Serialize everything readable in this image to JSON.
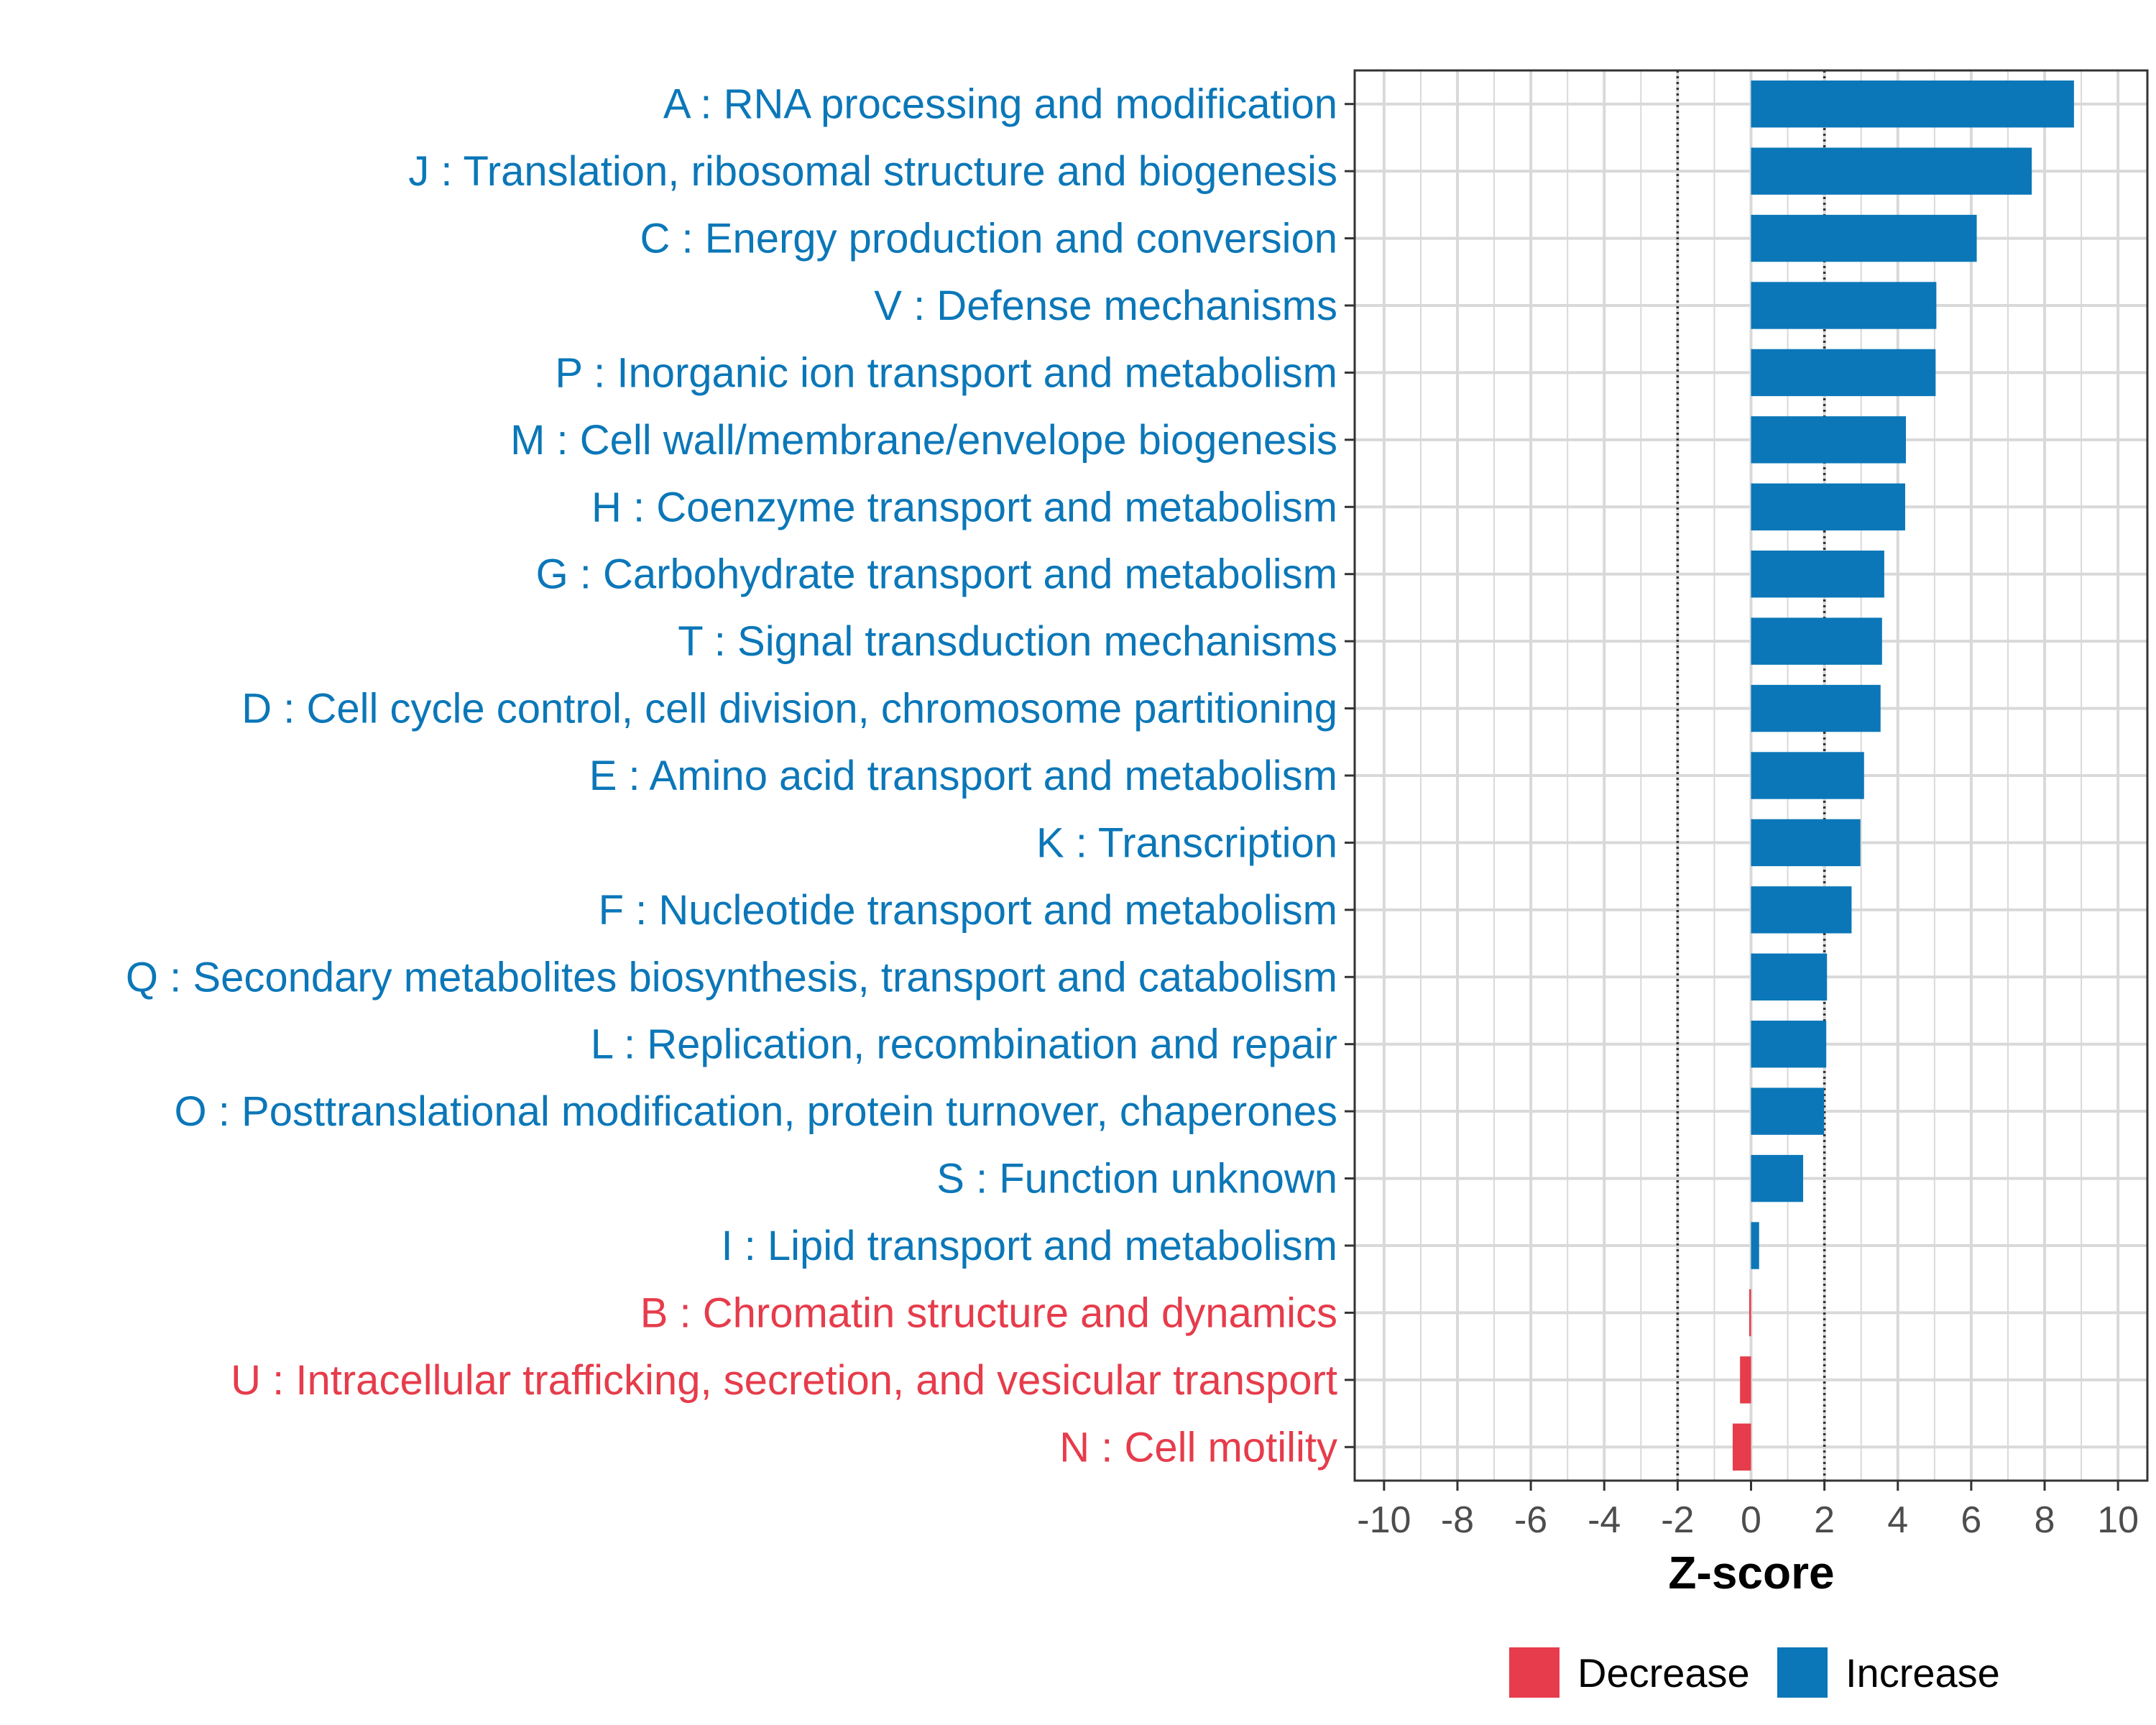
{
  "colors": {
    "increase": "#0B77B8",
    "decrease": "#E63C4B",
    "grid": "#d9d9d9",
    "frame": "#333333",
    "refline": "#333333"
  },
  "chart_data": {
    "type": "bar",
    "orientation": "horizontal",
    "title": "",
    "xlabel": "Z-score",
    "ylabel": "",
    "xlim": [
      -10.8,
      10.8
    ],
    "x_ticks": [
      -10,
      -8,
      -6,
      -4,
      -2,
      0,
      2,
      4,
      6,
      8,
      10
    ],
    "x_tick_labels": [
      "-10",
      "-8",
      "-6",
      "-4",
      "-2",
      "0",
      "2",
      "4",
      "6",
      "8",
      "10"
    ],
    "reference_lines": [
      -2,
      2
    ],
    "grid": true,
    "legend_position": "bottom",
    "legend": [
      {
        "label": "Decrease",
        "color_key": "decrease"
      },
      {
        "label": "Increase",
        "color_key": "increase"
      }
    ],
    "categories": [
      "A : RNA processing and modification",
      "J : Translation, ribosomal structure and biogenesis",
      "C : Energy production and conversion",
      "V : Defense mechanisms",
      "P : Inorganic ion transport and metabolism",
      "M : Cell wall/membrane/envelope biogenesis",
      "H : Coenzyme transport and metabolism",
      "G : Carbohydrate transport and metabolism",
      "T : Signal transduction mechanisms",
      "D : Cell cycle control, cell division, chromosome partitioning",
      "E : Amino acid transport and metabolism",
      "K : Transcription",
      "F : Nucleotide transport and metabolism",
      "Q : Secondary metabolites biosynthesis, transport and catabolism",
      "L : Replication, recombination and repair",
      "O : Posttranslational modification, protein turnover, chaperones",
      "S : Function unknown",
      "I : Lipid transport and metabolism",
      "B : Chromatin structure and dynamics",
      "U : Intracellular trafficking, secretion, and vesicular transport",
      "N : Cell motility"
    ],
    "values": [
      8.8,
      7.65,
      6.15,
      5.05,
      5.03,
      4.22,
      4.2,
      3.63,
      3.57,
      3.53,
      3.08,
      2.98,
      2.74,
      2.07,
      2.05,
      1.99,
      1.42,
      0.22,
      -0.05,
      -0.3,
      -0.5
    ],
    "directions": [
      "Increase",
      "Increase",
      "Increase",
      "Increase",
      "Increase",
      "Increase",
      "Increase",
      "Increase",
      "Increase",
      "Increase",
      "Increase",
      "Increase",
      "Increase",
      "Increase",
      "Increase",
      "Increase",
      "Increase",
      "Increase",
      "Decrease",
      "Decrease",
      "Decrease"
    ]
  }
}
